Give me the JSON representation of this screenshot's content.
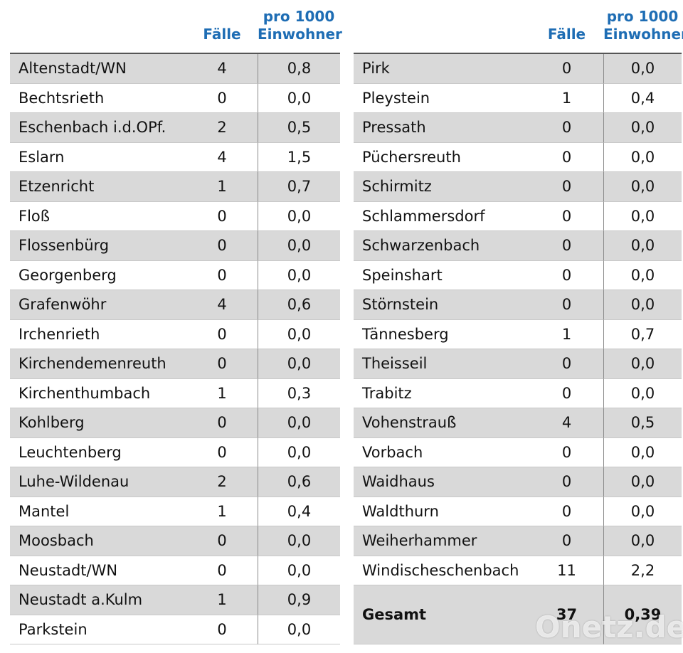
{
  "tables": [
    {
      "header": {
        "cases": "Fälle",
        "per_line1": "pro 1000",
        "per_line2": "Einwohner"
      },
      "rows": [
        [
          "Altenstadt/WN",
          "4",
          "0,8"
        ],
        [
          "Bechtsrieth",
          "0",
          "0,0"
        ],
        [
          "Eschenbach i.d.OPf.",
          "2",
          "0,5"
        ],
        [
          "Eslarn",
          "4",
          "1,5"
        ],
        [
          "Etzenricht",
          "1",
          "0,7"
        ],
        [
          "Floß",
          "0",
          "0,0"
        ],
        [
          "Flossenbürg",
          "0",
          "0,0"
        ],
        [
          "Georgenberg",
          "0",
          "0,0"
        ],
        [
          "Grafenwöhr",
          "4",
          "0,6"
        ],
        [
          "Irchenrieth",
          "0",
          "0,0"
        ],
        [
          "Kirchendemenreuth",
          "0",
          "0,0"
        ],
        [
          "Kirchenthumbach",
          "1",
          "0,3"
        ],
        [
          "Kohlberg",
          "0",
          "0,0"
        ],
        [
          "Leuchtenberg",
          "0",
          "0,0"
        ],
        [
          "Luhe-Wildenau",
          "2",
          "0,6"
        ],
        [
          "Mantel",
          "1",
          "0,4"
        ],
        [
          "Moosbach",
          "0",
          "0,0"
        ],
        [
          "Neustadt/WN",
          "0",
          "0,0"
        ],
        [
          "Neustadt a.Kulm",
          "1",
          "0,9"
        ],
        [
          "Parkstein",
          "0",
          "0,0"
        ]
      ]
    },
    {
      "header": {
        "cases": "Fälle",
        "per_line1": "pro 1000",
        "per_line2": "Einwohner"
      },
      "rows": [
        [
          "Pirk",
          "0",
          "0,0"
        ],
        [
          "Pleystein",
          "1",
          "0,4"
        ],
        [
          "Pressath",
          "0",
          "0,0"
        ],
        [
          "Püchersreuth",
          "0",
          "0,0"
        ],
        [
          "Schirmitz",
          "0",
          "0,0"
        ],
        [
          "Schlammersdorf",
          "0",
          "0,0"
        ],
        [
          "Schwarzenbach",
          "0",
          "0,0"
        ],
        [
          "Speinshart",
          "0",
          "0,0"
        ],
        [
          "Störnstein",
          "0",
          "0,0"
        ],
        [
          "Tännesberg",
          "1",
          "0,7"
        ],
        [
          "Theisseil",
          "0",
          "0,0"
        ],
        [
          "Trabitz",
          "0",
          "0,0"
        ],
        [
          "Vohenstrauß",
          "4",
          "0,5"
        ],
        [
          "Vorbach",
          "0",
          "0,0"
        ],
        [
          "Waidhaus",
          "0",
          "0,0"
        ],
        [
          "Waldthurn",
          "0",
          "0,0"
        ],
        [
          "Weiherhammer",
          "0",
          "0,0"
        ],
        [
          "Windischeschenbach",
          "11",
          "2,2"
        ]
      ],
      "total": [
        "Gesamt",
        "37",
        "0,39"
      ]
    }
  ],
  "watermark": "Onetz.de"
}
